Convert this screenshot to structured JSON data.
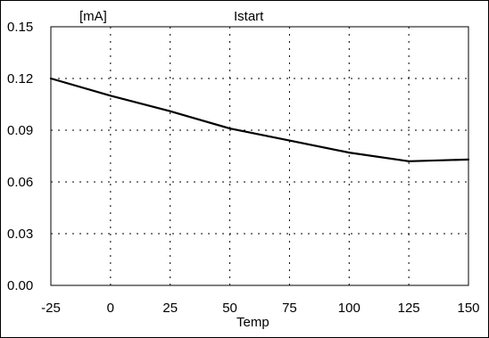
{
  "chart_data": {
    "type": "line",
    "title": "Istart",
    "xlabel": "Temp",
    "ylabel": "[mA]",
    "x": [
      -25,
      0,
      25,
      50,
      75,
      100,
      125,
      150
    ],
    "series": [
      {
        "values": [
          0.12,
          0.11,
          0.101,
          0.091,
          0.084,
          0.077,
          0.072,
          0.073
        ]
      }
    ],
    "xlim": [
      -25,
      150
    ],
    "ylim": [
      0.0,
      0.15
    ],
    "x_ticks": [
      "-25",
      "0",
      "25",
      "50",
      "75",
      "100",
      "125",
      "150"
    ],
    "y_ticks": [
      "0.00",
      "0.03",
      "0.06",
      "0.09",
      "0.12",
      "0.15"
    ],
    "grid": true,
    "line_color": "#000000",
    "grid_color": "#000000"
  }
}
